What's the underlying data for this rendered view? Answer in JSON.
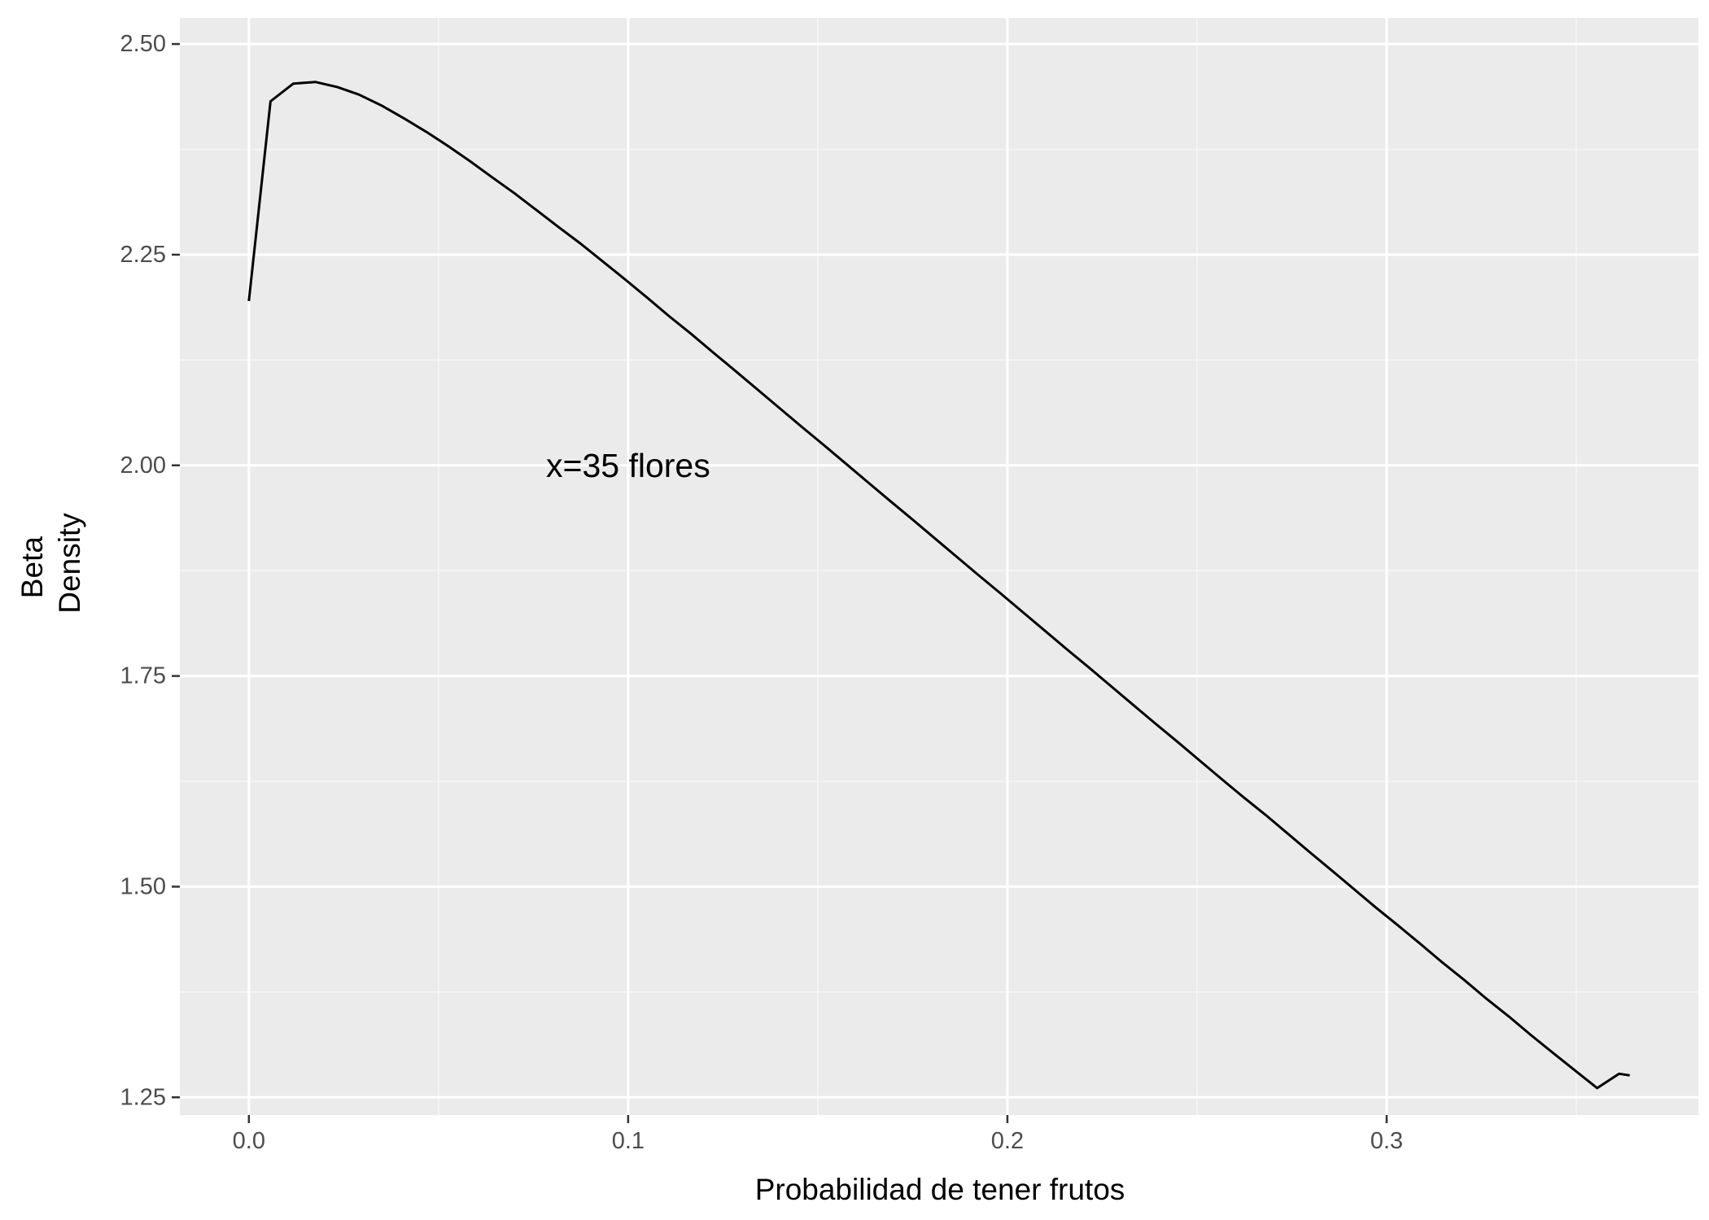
{
  "chart_data": {
    "type": "line",
    "title": "",
    "xlabel": "Probabilidad de tener frutos",
    "ylabel_lines": [
      "Beta",
      "Density"
    ],
    "xlim": [
      -0.0182,
      0.3822
    ],
    "ylim": [
      1.229,
      2.531
    ],
    "x_ticks": [
      {
        "value": 0.0,
        "label": "0.0"
      },
      {
        "value": 0.1,
        "label": "0.1"
      },
      {
        "value": 0.2,
        "label": "0.2"
      },
      {
        "value": 0.3,
        "label": "0.3"
      }
    ],
    "x_minor_ticks": [
      0.05,
      0.15,
      0.25,
      0.35
    ],
    "y_ticks": [
      {
        "value": 1.25,
        "label": "1.25"
      },
      {
        "value": 1.5,
        "label": "1.50"
      },
      {
        "value": 1.75,
        "label": "1.75"
      },
      {
        "value": 2.0,
        "label": "2.00"
      },
      {
        "value": 2.25,
        "label": "2.25"
      },
      {
        "value": 2.5,
        "label": "2.50"
      }
    ],
    "y_minor_ticks": [
      1.375,
      1.625,
      1.875,
      2.125,
      2.375
    ],
    "grid": true,
    "legend": "none",
    "series": [
      {
        "x": [
          0.0,
          0.0057,
          0.0117,
          0.0175,
          0.0233,
          0.029,
          0.035,
          0.0408,
          0.0467,
          0.0525,
          0.0583,
          0.0641,
          0.07,
          0.0758,
          0.0816,
          0.0875,
          0.0933,
          0.0991,
          0.105,
          0.1108,
          0.1166,
          0.1224,
          0.1283,
          0.1341,
          0.1399,
          0.1457,
          0.1516,
          0.1574,
          0.1632,
          0.169,
          0.1749,
          0.1807,
          0.1865,
          0.1923,
          0.1982,
          0.204,
          0.2098,
          0.2156,
          0.2215,
          0.2273,
          0.2331,
          0.2389,
          0.2448,
          0.2506,
          0.2564,
          0.2623,
          0.2681,
          0.2739,
          0.2797,
          0.2856,
          0.2914,
          0.2972,
          0.303,
          0.3089,
          0.3147,
          0.3205,
          0.3263,
          0.3322,
          0.338,
          0.3438,
          0.3496,
          0.3555,
          0.3613,
          0.3641
        ],
        "y": [
          2.195,
          2.432,
          2.453,
          2.455,
          2.449,
          2.44,
          2.427,
          2.412,
          2.396,
          2.379,
          2.361,
          2.342,
          2.323,
          2.303,
          2.283,
          2.263,
          2.242,
          2.221,
          2.199,
          2.177,
          2.156,
          2.134,
          2.112,
          2.09,
          2.068,
          2.046,
          2.024,
          2.002,
          1.98,
          1.958,
          1.936,
          1.914,
          1.892,
          1.87,
          1.848,
          1.826,
          1.804,
          1.782,
          1.76,
          1.738,
          1.716,
          1.694,
          1.672,
          1.65,
          1.628,
          1.606,
          1.585,
          1.563,
          1.541,
          1.519,
          1.497,
          1.475,
          1.454,
          1.432,
          1.41,
          1.389,
          1.367,
          1.346,
          1.324,
          1.303,
          1.282,
          1.261,
          1.278,
          1.276
        ]
      }
    ],
    "annotations": [
      {
        "text": "x=35 flores",
        "x": 0.1,
        "y": 2.0
      }
    ]
  },
  "colors": {
    "panel_background": "#ebebeb",
    "grid_major": "#ffffff",
    "grid_minor": "#f6f6f6",
    "line": "#000000",
    "tick_label": "#4d4d4d",
    "tick_mark": "#333333"
  }
}
